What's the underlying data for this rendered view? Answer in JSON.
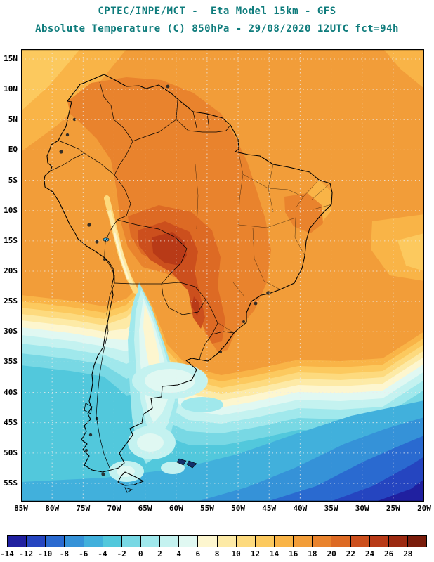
{
  "header": {
    "line1": "CPTEC/INPE/MCT -  Eta Model 15km - GFS",
    "line2": "Absolute Temperature (C) 850hPa - 29/08/2020 12UTC fct=94h"
  },
  "colors": {
    "title": "#0f7c7c",
    "grid": "#ececec",
    "coastline": "#000000",
    "borders": "#000000",
    "background": "#ffffff"
  },
  "map": {
    "region": "South America",
    "lat_labels": [
      "15N",
      "10N",
      "5N",
      "EQ",
      "5S",
      "10S",
      "15S",
      "20S",
      "25S",
      "30S",
      "35S",
      "40S",
      "45S",
      "50S",
      "55S"
    ],
    "lon_labels": [
      "85W",
      "80W",
      "75W",
      "70W",
      "65W",
      "60W",
      "55W",
      "50W",
      "45W",
      "40W",
      "35W",
      "30W",
      "25W",
      "20W"
    ]
  },
  "palette": {
    "m14": "#2020a0",
    "m12": "#2545c0",
    "m10": "#2a6ad0",
    "m8": "#3592d8",
    "m6": "#41b0dc",
    "m4": "#52c8dc",
    "m2": "#78d8e4",
    "z0": "#a0e8ec",
    "p2": "#c4f2f0",
    "p4": "#e0f8f2",
    "p6": "#fdf6cf",
    "p8": "#fdeaa6",
    "p10": "#fdda7e",
    "p12": "#fcc95e",
    "p14": "#f9b447",
    "p16": "#f29d39",
    "p18": "#e9832d",
    "p20": "#dd6a24",
    "p22": "#cc4f1d",
    "p24": "#b83a17",
    "p26": "#9c2a11",
    "p28": "#7a1c0b"
  },
  "colorbar": {
    "tick_labels": [
      "-14",
      "-12",
      "-10",
      "-8",
      "-6",
      "-4",
      "-2",
      "0",
      "2",
      "4",
      "6",
      "8",
      "10",
      "12",
      "14",
      "16",
      "18",
      "20",
      "22",
      "24",
      "26",
      "28"
    ],
    "cell_keys": [
      "m14",
      "m12",
      "m10",
      "m8",
      "m6",
      "m4",
      "m2",
      "z0",
      "p2",
      "p4",
      "p6",
      "p8",
      "p10",
      "p12",
      "p14",
      "p16",
      "p18",
      "p20",
      "p22",
      "p24",
      "p26",
      "p28"
    ]
  }
}
